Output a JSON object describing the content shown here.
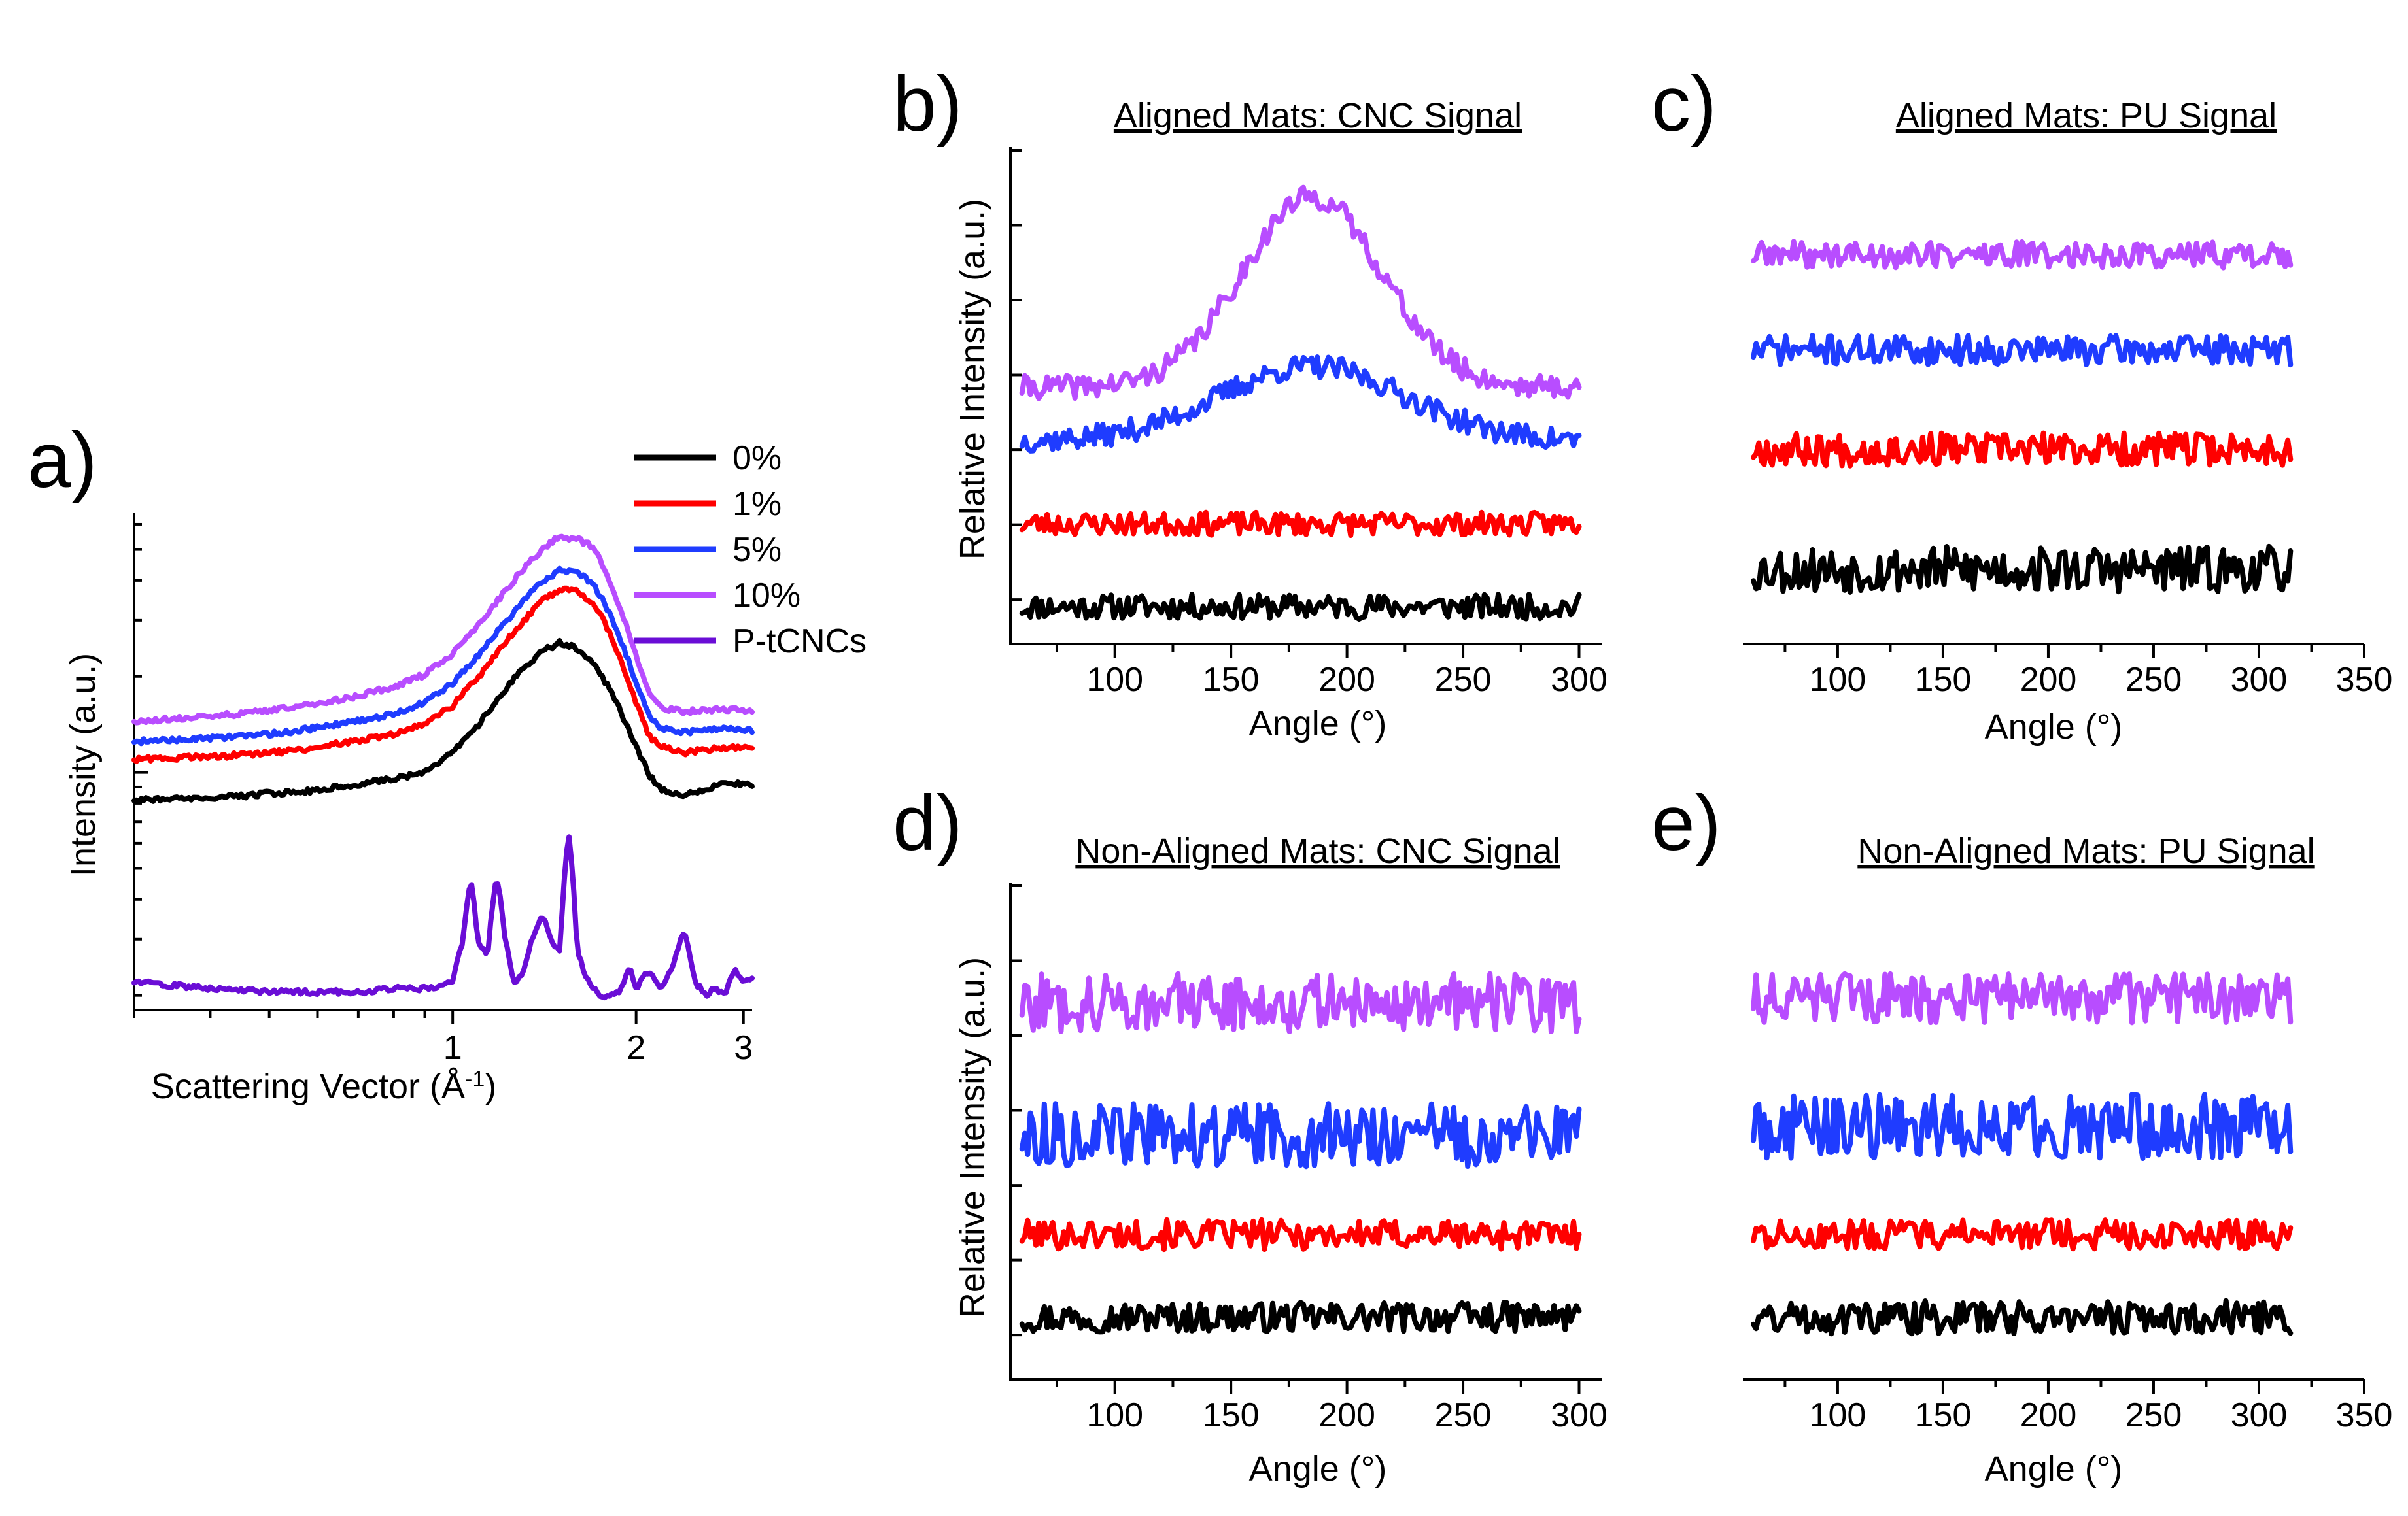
{
  "figure": {
    "panels": [
      {
        "id": "a",
        "letter": "a)",
        "title": "",
        "xlabel": "Scattering Vector (Å",
        "xlabel_sup": "-1",
        "xlabel_end": ")",
        "ylabel": "Intensity (a.u.)"
      },
      {
        "id": "b",
        "letter": "b)",
        "title": "Aligned Mats: CNC Signal",
        "xlabel": "Angle (°)",
        "ylabel": "Relative Intensity (a.u.)"
      },
      {
        "id": "c",
        "letter": "c)",
        "title": "Aligned Mats: PU Signal",
        "xlabel": "Angle (°)",
        "ylabel": ""
      },
      {
        "id": "d",
        "letter": "d)",
        "title": "Non-Aligned Mats: CNC Signal",
        "xlabel": "Angle (°)",
        "ylabel": "Relative Intensity (a.u.)"
      },
      {
        "id": "e",
        "letter": "e)",
        "title": "Non-Aligned Mats: PU Signal",
        "xlabel": "Angle (°)",
        "ylabel": ""
      }
    ],
    "legend": [
      {
        "label": "0%",
        "color": "#000000"
      },
      {
        "label": "1%",
        "color": "#ff0000"
      },
      {
        "label": "5%",
        "color": "#1f3cff"
      },
      {
        "label": "10%",
        "color": "#b84dff"
      },
      {
        "label": "P-tCNCs",
        "color": "#6a0dd6"
      }
    ]
  },
  "chart_data": [
    {
      "panel": "a",
      "type": "line",
      "xscale": "log",
      "yscale": "log",
      "xlim": [
        0.3,
        3.1
      ],
      "xticks": [
        1,
        2,
        3
      ],
      "xtick_labels": [
        "1",
        "2",
        "3"
      ],
      "yticks_shown": true,
      "ytick_labels": [],
      "legend_position": "top-right",
      "series": [
        {
          "name": "0%",
          "color": "#000000",
          "x": [
            0.3,
            0.4,
            0.5,
            0.6,
            0.7,
            0.8,
            0.9,
            1.0,
            1.1,
            1.2,
            1.3,
            1.4,
            1.5,
            1.6,
            1.7,
            1.8,
            1.9,
            2.0,
            2.1,
            2.2,
            2.4,
            2.6,
            2.8,
            3.0,
            3.1
          ],
          "y": [
            0.82,
            0.83,
            0.86,
            0.88,
            0.92,
            0.96,
            1.0,
            1.15,
            1.4,
            1.75,
            2.1,
            2.4,
            2.55,
            2.45,
            2.2,
            1.85,
            1.5,
            1.2,
            0.98,
            0.88,
            0.85,
            0.88,
            0.93,
            0.92,
            0.91
          ]
        },
        {
          "name": "1%",
          "color": "#ff0000",
          "x": [
            0.3,
            0.4,
            0.5,
            0.6,
            0.7,
            0.8,
            0.9,
            1.0,
            1.1,
            1.2,
            1.3,
            1.4,
            1.5,
            1.6,
            1.7,
            1.8,
            1.9,
            2.0,
            2.1,
            2.2,
            2.4,
            2.6,
            2.8,
            3.0,
            3.1
          ],
          "y": [
            1.1,
            1.12,
            1.15,
            1.2,
            1.26,
            1.32,
            1.42,
            1.62,
            1.98,
            2.45,
            2.95,
            3.45,
            3.75,
            3.7,
            3.4,
            2.8,
            2.15,
            1.65,
            1.3,
            1.2,
            1.15,
            1.18,
            1.2,
            1.2,
            1.18
          ]
        },
        {
          "name": "5%",
          "color": "#1f3cff",
          "x": [
            0.3,
            0.4,
            0.5,
            0.6,
            0.7,
            0.8,
            0.9,
            1.0,
            1.1,
            1.2,
            1.3,
            1.4,
            1.5,
            1.6,
            1.7,
            1.8,
            1.9,
            2.0,
            2.1,
            2.2,
            2.4,
            2.6,
            2.8,
            3.0,
            3.1
          ],
          "y": [
            1.25,
            1.28,
            1.32,
            1.38,
            1.45,
            1.53,
            1.66,
            1.9,
            2.32,
            2.85,
            3.4,
            3.95,
            4.3,
            4.25,
            3.9,
            3.2,
            2.5,
            1.9,
            1.5,
            1.38,
            1.34,
            1.36,
            1.38,
            1.37,
            1.35
          ]
        },
        {
          "name": "10%",
          "color": "#b84dff",
          "x": [
            0.3,
            0.4,
            0.5,
            0.6,
            0.7,
            0.8,
            0.9,
            1.0,
            1.1,
            1.2,
            1.3,
            1.4,
            1.5,
            1.6,
            1.7,
            1.8,
            1.9,
            2.0,
            2.1,
            2.2,
            2.4,
            2.6,
            2.8,
            3.0,
            3.1
          ],
          "y": [
            1.45,
            1.5,
            1.56,
            1.64,
            1.74,
            1.86,
            2.03,
            2.35,
            2.9,
            3.55,
            4.3,
            5.0,
            5.5,
            5.4,
            5.1,
            4.1,
            3.1,
            2.3,
            1.78,
            1.6,
            1.55,
            1.57,
            1.58,
            1.56,
            1.54
          ]
        },
        {
          "name": "P-tCNCs",
          "color": "#6a0dd6",
          "x": [
            0.3,
            0.4,
            0.5,
            0.6,
            0.7,
            0.8,
            0.9,
            1.0,
            1.04,
            1.07,
            1.1,
            1.14,
            1.18,
            1.22,
            1.26,
            1.3,
            1.35,
            1.4,
            1.45,
            1.5,
            1.55,
            1.6,
            1.65,
            1.7,
            1.75,
            1.8,
            1.9,
            1.95,
            2.0,
            2.1,
            2.2,
            2.3,
            2.4,
            2.5,
            2.6,
            2.7,
            2.8,
            2.9,
            3.0,
            3.1
          ],
          "y": [
            0.22,
            0.21,
            0.205,
            0.205,
            0.205,
            0.21,
            0.21,
            0.22,
            0.3,
            0.46,
            0.3,
            0.26,
            0.48,
            0.3,
            0.22,
            0.23,
            0.3,
            0.36,
            0.3,
            0.27,
            0.65,
            0.28,
            0.23,
            0.21,
            0.2,
            0.2,
            0.21,
            0.25,
            0.21,
            0.24,
            0.21,
            0.25,
            0.32,
            0.22,
            0.2,
            0.21,
            0.2,
            0.24,
            0.22,
            0.23
          ]
        }
      ]
    },
    {
      "panel": "b",
      "type": "line",
      "title": "Aligned Mats: CNC Signal",
      "xlabel": "Angle (°)",
      "ylabel": "Relative Intensity (a.u.)",
      "xlim": [
        55,
        310
      ],
      "xticks": [
        100,
        150,
        200,
        250,
        300
      ],
      "ylim": [
        0,
        6
      ],
      "yticks_shown": true,
      "ytick_labels": [],
      "series": [
        {
          "name": "0%",
          "color": "#000000",
          "x": [
            60,
            300
          ],
          "baseline": 0.45,
          "peak_x": 0,
          "peak_h": 0,
          "noise": 0.15,
          "seed": 11
        },
        {
          "name": "1%",
          "color": "#ff0000",
          "x": [
            60,
            300
          ],
          "baseline": 1.45,
          "peak_x": 0,
          "peak_h": 0,
          "noise": 0.14,
          "seed": 23
        },
        {
          "name": "5%",
          "color": "#1f3cff",
          "x": [
            60,
            300
          ],
          "baseline": 2.45,
          "peak_x": 185,
          "peak_h": 0.9,
          "peak_w": 40,
          "noise": 0.14,
          "seed": 37
        },
        {
          "name": "10%",
          "color": "#b84dff",
          "x": [
            60,
            300
          ],
          "baseline": 3.1,
          "peak_x": 185,
          "peak_h": 2.3,
          "peak_w": 30,
          "noise": 0.14,
          "seed": 41
        }
      ]
    },
    {
      "panel": "c",
      "type": "line",
      "title": "Aligned Mats: PU Signal",
      "xlabel": "Angle (°)",
      "ylabel": "",
      "xlim": [
        55,
        350
      ],
      "xticks": [
        100,
        150,
        200,
        250,
        300,
        350
      ],
      "ylim": [
        0,
        6
      ],
      "yticks_shown": false,
      "series": [
        {
          "name": "0%",
          "color": "#000000",
          "x": [
            60,
            315
          ],
          "baseline": 0.9,
          "peak_x": 0,
          "peak_h": 0,
          "noise": 0.28,
          "seed": 53
        },
        {
          "name": "1%",
          "color": "#ff0000",
          "x": [
            60,
            315
          ],
          "baseline": 2.35,
          "peak_x": 0,
          "peak_h": 0,
          "noise": 0.2,
          "seed": 67
        },
        {
          "name": "5%",
          "color": "#1f3cff",
          "x": [
            60,
            315
          ],
          "baseline": 3.55,
          "peak_x": 0,
          "peak_h": 0,
          "noise": 0.18,
          "seed": 71
        },
        {
          "name": "10%",
          "color": "#b84dff",
          "x": [
            60,
            315
          ],
          "baseline": 4.7,
          "peak_x": 0,
          "peak_h": 0,
          "noise": 0.16,
          "seed": 89
        }
      ]
    },
    {
      "panel": "d",
      "type": "line",
      "title": "Non-Aligned Mats: CNC Signal",
      "xlabel": "Angle (°)",
      "ylabel": "Relative Intensity (a.u.)",
      "xlim": [
        55,
        310
      ],
      "xticks": [
        100,
        150,
        200,
        250,
        300
      ],
      "ylim": [
        0,
        6
      ],
      "yticks_shown": true,
      "ytick_labels": [],
      "series": [
        {
          "name": "0%",
          "color": "#000000",
          "x": [
            60,
            300
          ],
          "baseline": 0.75,
          "peak_x": 0,
          "peak_h": 0,
          "noise": 0.18,
          "seed": 97
        },
        {
          "name": "1%",
          "color": "#ff0000",
          "x": [
            60,
            300
          ],
          "baseline": 1.75,
          "peak_x": 0,
          "peak_h": 0,
          "noise": 0.18,
          "seed": 101
        },
        {
          "name": "5%",
          "color": "#1f3cff",
          "x": [
            60,
            300
          ],
          "baseline": 2.95,
          "peak_x": 0,
          "peak_h": 0,
          "noise": 0.38,
          "seed": 113
        },
        {
          "name": "10%",
          "color": "#b84dff",
          "x": [
            60,
            300
          ],
          "baseline": 4.55,
          "peak_x": 0,
          "peak_h": 0,
          "noise": 0.35,
          "seed": 127
        }
      ]
    },
    {
      "panel": "e",
      "type": "line",
      "title": "Non-Aligned Mats: PU Signal",
      "xlabel": "Angle (°)",
      "ylabel": "",
      "xlim": [
        55,
        350
      ],
      "xticks": [
        100,
        150,
        200,
        250,
        300,
        350
      ],
      "ylim": [
        0,
        6
      ],
      "yticks_shown": false,
      "series": [
        {
          "name": "0%",
          "color": "#000000",
          "x": [
            60,
            315
          ],
          "baseline": 0.75,
          "peak_x": 0,
          "peak_h": 0,
          "noise": 0.2,
          "seed": 131
        },
        {
          "name": "1%",
          "color": "#ff0000",
          "x": [
            60,
            315
          ],
          "baseline": 1.75,
          "peak_x": 0,
          "peak_h": 0,
          "noise": 0.18,
          "seed": 137
        },
        {
          "name": "5%",
          "color": "#1f3cff",
          "x": [
            60,
            315
          ],
          "baseline": 3.05,
          "peak_x": 0,
          "peak_h": 0,
          "noise": 0.4,
          "seed": 149
        },
        {
          "name": "10%",
          "color": "#b84dff",
          "x": [
            60,
            315
          ],
          "baseline": 4.6,
          "peak_x": 0,
          "peak_h": 0,
          "noise": 0.3,
          "seed": 151
        }
      ]
    }
  ]
}
